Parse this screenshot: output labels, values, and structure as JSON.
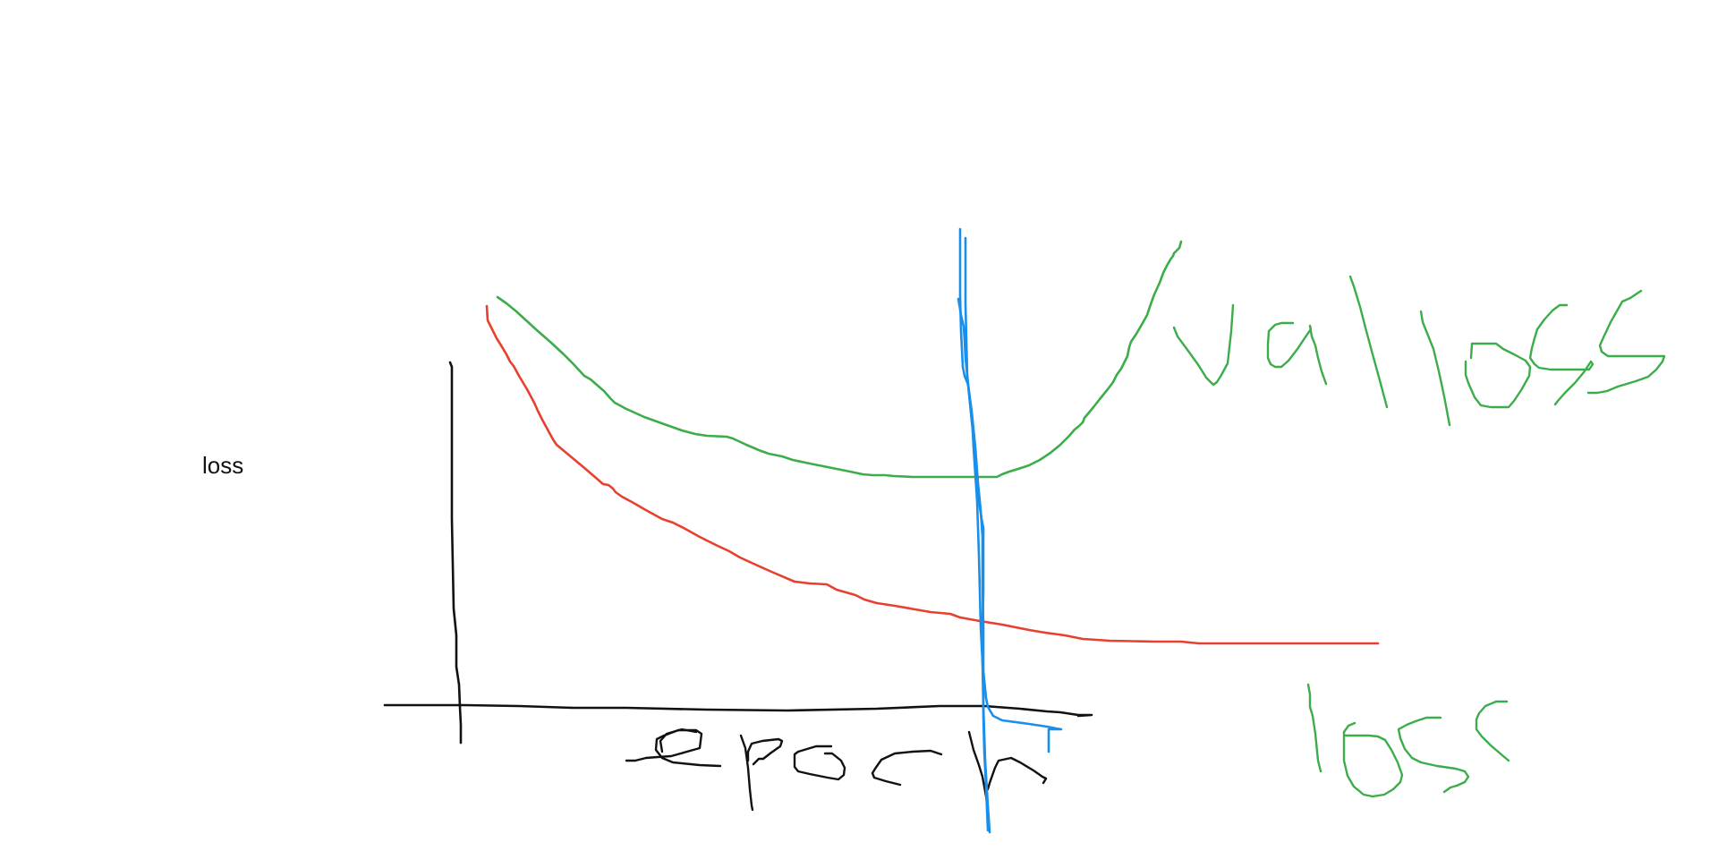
{
  "ylabel": "loss",
  "handwritten": {
    "xlabel": "epoch",
    "val_label": "val loss",
    "train_label": "loss"
  },
  "colors": {
    "axis": "#111111",
    "train_curve": "#e8402f",
    "val_curve": "#3cad4a",
    "marker": "#1a8fea"
  }
}
